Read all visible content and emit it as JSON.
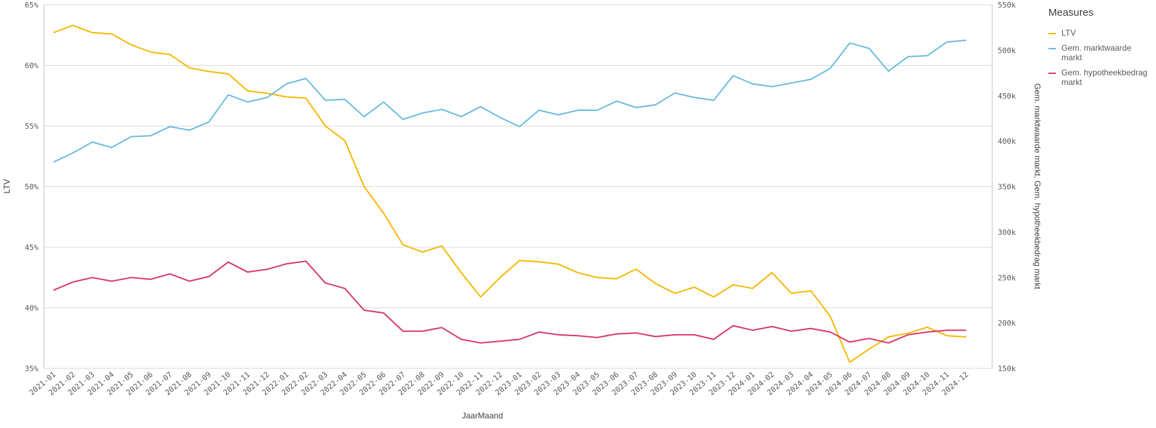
{
  "chart_data": {
    "type": "line",
    "xlabel": "JaarMaand",
    "ylabel": "LTV",
    "y2label": "Gem. marktwaarde markt, Gem. hypotheekbedrag markt",
    "ylim": [
      35,
      65
    ],
    "y2lim": [
      150000,
      550000
    ],
    "grid": true,
    "legend_title": "Measures",
    "legend_position": "right",
    "y_ticks": [
      "35%",
      "40%",
      "45%",
      "50%",
      "55%",
      "60%",
      "65%"
    ],
    "y2_ticks": [
      "150k",
      "200k",
      "250k",
      "300k",
      "350k",
      "400k",
      "450k",
      "500k",
      "550k"
    ],
    "categories": [
      "2021-01",
      "2021-02",
      "2021-03",
      "2021-04",
      "2021-05",
      "2021-06",
      "2021-07",
      "2021-08",
      "2021-09",
      "2021-10",
      "2021-11",
      "2021-12",
      "2022-01",
      "2022-02",
      "2022-03",
      "2022-04",
      "2022-05",
      "2022-06",
      "2022-07",
      "2022-08",
      "2022-09",
      "2022-10",
      "2022-11",
      "2022-12",
      "2023-01",
      "2023-02",
      "2023-03",
      "2023-04",
      "2023-05",
      "2023-06",
      "2023-07",
      "2023-08",
      "2023-09",
      "2023-10",
      "2023-11",
      "2023-12",
      "2024-01",
      "2024-02",
      "2024-03",
      "2024-04",
      "2024-05",
      "2024-06",
      "2024-07",
      "2024-08",
      "2024-09",
      "2024-10",
      "2024-11",
      "2024-12"
    ],
    "series": [
      {
        "name": "LTV",
        "axis": "left",
        "color": "#f5b800",
        "values": [
          62.7,
          63.3,
          62.7,
          62.6,
          61.7,
          61.1,
          60.9,
          59.8,
          59.5,
          59.3,
          57.9,
          57.7,
          57.4,
          57.3,
          55.0,
          53.8,
          50.0,
          47.8,
          45.2,
          44.6,
          45.1,
          42.9,
          40.9,
          42.5,
          43.9,
          43.8,
          43.6,
          42.9,
          42.5,
          42.4,
          43.2,
          42.0,
          41.2,
          41.7,
          40.9,
          41.9,
          41.6,
          42.9,
          41.2,
          41.4,
          39.3,
          35.5,
          36.6,
          37.6,
          37.9,
          38.4,
          37.7,
          37.6
        ]
      },
      {
        "name": "Gem. marktwaarde markt",
        "axis": "right",
        "color": "#6bbbe0",
        "values": [
          377000,
          387000,
          399000,
          393000,
          405000,
          406000,
          416000,
          412000,
          421000,
          451000,
          443000,
          448000,
          463000,
          469000,
          445000,
          446000,
          427000,
          443000,
          424000,
          431000,
          435000,
          427000,
          438000,
          426000,
          416000,
          434000,
          429000,
          434000,
          434000,
          444000,
          437000,
          440000,
          453000,
          448000,
          445000,
          472000,
          463000,
          460000,
          464000,
          468000,
          480000,
          508000,
          502000,
          477000,
          493000,
          494000,
          509000,
          511000
        ]
      },
      {
        "name": "Gem. hypotheekbedrag markt",
        "axis": "right",
        "color": "#d6386b",
        "values": [
          236000,
          245000,
          250000,
          246000,
          250000,
          248000,
          254000,
          246000,
          251000,
          267000,
          256000,
          259000,
          265000,
          268000,
          244000,
          238000,
          214000,
          211000,
          191000,
          191000,
          195000,
          182000,
          178000,
          180000,
          182000,
          190000,
          187000,
          186000,
          184000,
          188000,
          189000,
          185000,
          187000,
          187000,
          182000,
          197000,
          192000,
          196000,
          191000,
          194000,
          190000,
          179000,
          183000,
          178000,
          187000,
          190000,
          192000,
          192000
        ]
      }
    ]
  }
}
